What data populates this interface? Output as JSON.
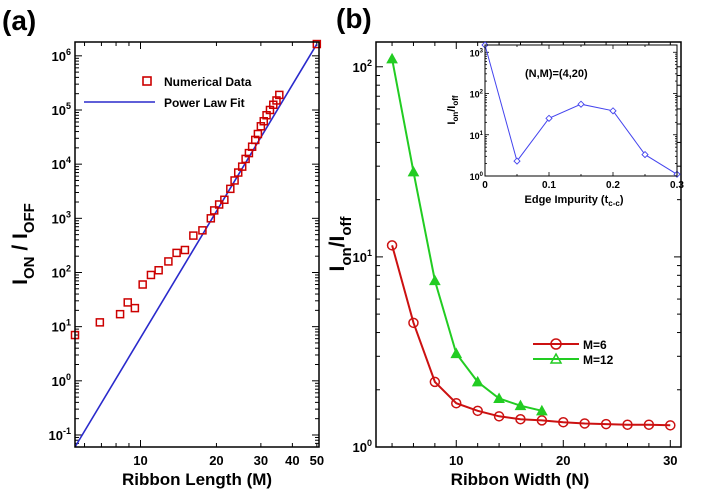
{
  "figure": {
    "panel_a_label": "(a)",
    "panel_b_label": "(b)"
  },
  "chart_data": [
    {
      "id": "a",
      "type": "scatter",
      "title": "",
      "xlabel": "Ribbon Length (M)",
      "ylabel_main": "I",
      "ylabel_sub1": "ON",
      "ylabel_mid": " / I",
      "ylabel_sub2": "OFF",
      "x_scale": "log",
      "y_scale": "log",
      "xlim": [
        5.5,
        51
      ],
      "ylim": [
        0.06,
        1800000
      ],
      "xticks": [
        10,
        20,
        30,
        40,
        50
      ],
      "xtick_labels": [
        "10",
        "20",
        "30",
        "40",
        "50"
      ],
      "ytick_mantissa": "10",
      "ytick_exponents": [
        "-1",
        "0",
        "1",
        "2",
        "3",
        "4",
        "5",
        "6"
      ],
      "legend_position": "upper-left",
      "colors": {
        "marker": "#cc0000",
        "line": "#2a2acc"
      },
      "series": [
        {
          "name": "Numerical Data",
          "style": "open-square",
          "x": [
            5.5,
            6.9,
            8.3,
            8.9,
            9.5,
            10.2,
            11,
            11.8,
            12.9,
            13.9,
            15,
            16.2,
            17.6,
            19,
            19.6,
            20.5,
            21.5,
            22.7,
            23.6,
            24.4,
            25.3,
            26.1,
            26.9,
            27.7,
            28.5,
            29.2,
            30,
            30.8,
            31.6,
            32.6,
            33.6,
            34.6,
            35.5,
            50
          ],
          "y": [
            7,
            12,
            17,
            28,
            22,
            60,
            90,
            110,
            160,
            230,
            260,
            480,
            600,
            1000,
            1400,
            1800,
            2200,
            3500,
            5000,
            7000,
            9000,
            12500,
            16000,
            21000,
            28000,
            36000,
            50000,
            62000,
            80000,
            100000,
            125000,
            150000,
            190000,
            1650000
          ]
        },
        {
          "name": "Power Law Fit",
          "style": "line",
          "x": [
            5.5,
            50
          ],
          "y": [
            0.06,
            1650000
          ]
        }
      ]
    },
    {
      "id": "b",
      "type": "line",
      "title": "",
      "xlabel": "Ribbon Width (N)",
      "ylabel_main": "I",
      "ylabel_sub1": "on",
      "ylabel_mid": "/I",
      "ylabel_sub2": "off",
      "x_scale": "linear",
      "y_scale": "log",
      "xlim": [
        2.5,
        31
      ],
      "ylim": [
        1,
        135
      ],
      "xticks": [
        10,
        20,
        30
      ],
      "xtick_labels": [
        "10",
        "20",
        "30"
      ],
      "yticks": [
        1,
        10,
        100
      ],
      "ytick_mantissa": "10",
      "ytick_exponents": [
        "0",
        "1",
        "2"
      ],
      "legend_position": "lower-right",
      "colors": {
        "m6": "#cc1111",
        "m12": "#22cc22"
      },
      "series": [
        {
          "name": "M=6",
          "style": "circle",
          "x": [
            4,
            6,
            8,
            10,
            12,
            14,
            16,
            18,
            20,
            22,
            24,
            26,
            28,
            30
          ],
          "y": [
            11.5,
            4.5,
            2.2,
            1.7,
            1.55,
            1.45,
            1.4,
            1.38,
            1.35,
            1.33,
            1.32,
            1.31,
            1.31,
            1.3
          ]
        },
        {
          "name": "M=12",
          "style": "triangle",
          "x": [
            4,
            6,
            8,
            10,
            12,
            14,
            16,
            18
          ],
          "y": [
            110,
            28,
            7.5,
            3.1,
            2.2,
            1.8,
            1.65,
            1.55
          ]
        }
      ]
    },
    {
      "id": "b-inset",
      "type": "line",
      "title": "",
      "annotation": "(N,M)=(4,20)",
      "xlabel_main": "Edge Impurity (t",
      "xlabel_sub": "c-c",
      "xlabel_end": ")",
      "ylabel_main": "I",
      "ylabel_sub1": "on",
      "ylabel_mid": "/I",
      "ylabel_sub2": "off",
      "x_scale": "linear",
      "y_scale": "log",
      "xlim": [
        0,
        0.3
      ],
      "ylim": [
        1,
        1500
      ],
      "xticks": [
        0,
        0.1,
        0.2,
        0.3
      ],
      "xtick_labels": [
        "0",
        "0.1",
        "0.2",
        "0.3"
      ],
      "ytick_mantissa": "10",
      "ytick_exponents": [
        "0",
        "1",
        "2",
        "3"
      ],
      "colors": {
        "line": "#4444ee"
      },
      "series": [
        {
          "style": "open-diamond",
          "x": [
            0,
            0.05,
            0.1,
            0.15,
            0.2,
            0.25,
            0.3
          ],
          "y": [
            1500,
            2.3,
            25,
            55,
            38,
            3.3,
            1.1
          ]
        }
      ]
    }
  ]
}
